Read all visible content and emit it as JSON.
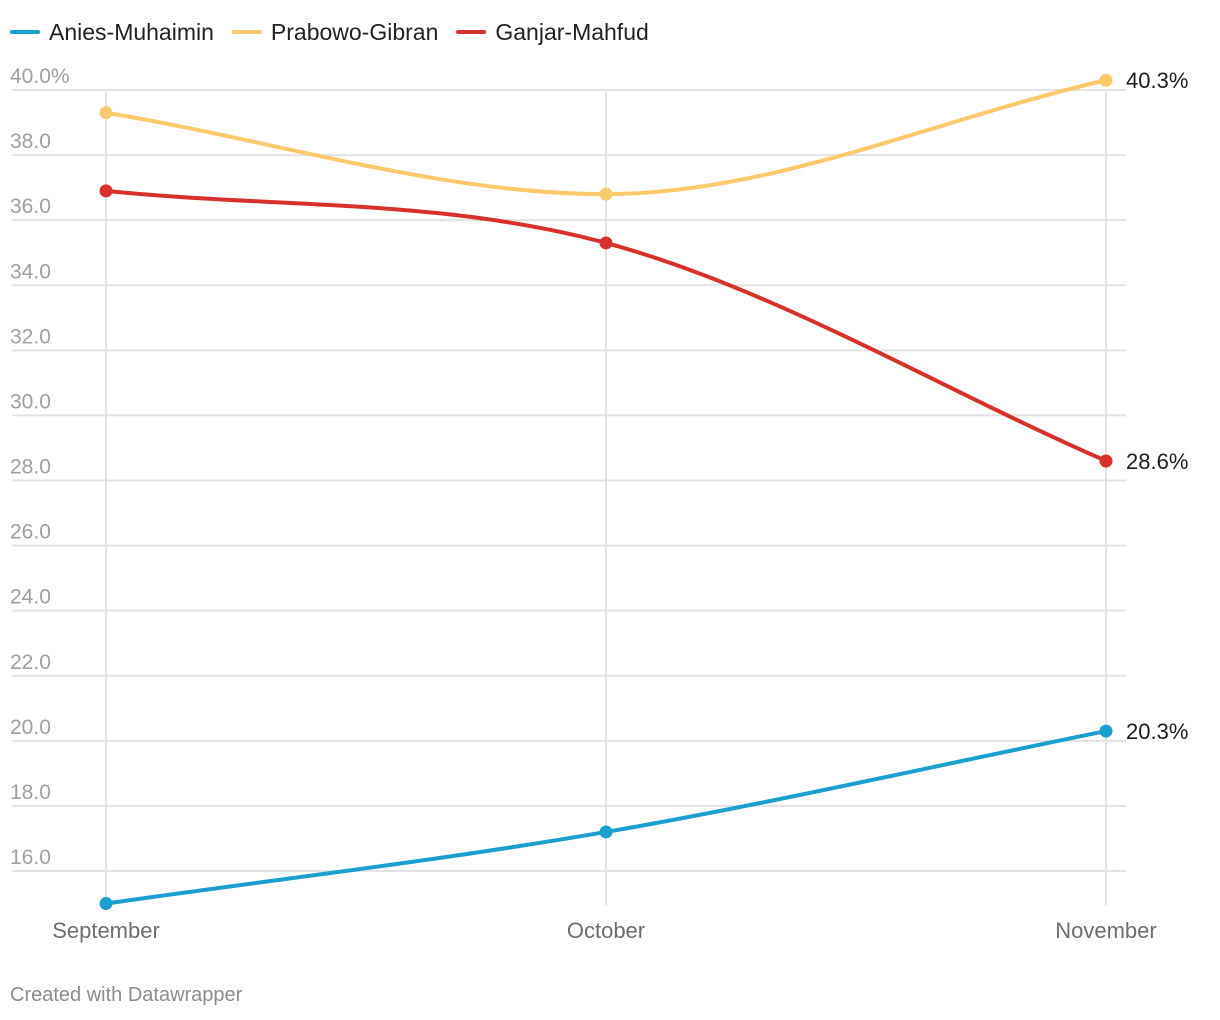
{
  "chart_data": {
    "type": "line",
    "categories": [
      "September",
      "October",
      "November"
    ],
    "series": [
      {
        "name": "Anies-Muhaimin",
        "color": "#1a9fcf",
        "values": [
          15.0,
          17.2,
          20.3
        ],
        "end_label": "20.3%"
      },
      {
        "name": "Prabowo-Gibran",
        "color": "#fcc96d",
        "values": [
          39.3,
          36.8,
          40.3
        ],
        "end_label": "40.3%"
      },
      {
        "name": "Ganjar-Mahfud",
        "color": "#d8312b",
        "values": [
          36.9,
          35.3,
          28.6
        ],
        "end_label": "28.6%"
      }
    ],
    "yticks": [
      "40.0%",
      "38.0",
      "36.0",
      "34.0",
      "32.0",
      "30.0",
      "28.0",
      "26.0",
      "24.0",
      "22.0",
      "20.0",
      "18.0",
      "16.0"
    ],
    "ylim": [
      15.0,
      40.0
    ],
    "grid": true,
    "legend": "top-left"
  },
  "footer": "Created with Datawrapper"
}
